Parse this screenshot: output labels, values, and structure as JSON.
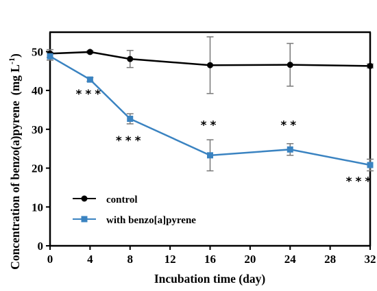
{
  "chart_data": {
    "type": "line",
    "title": "",
    "xlabel": "Incubation time (day)",
    "ylabel": "Concentration of benzo(a)pyrene",
    "ylabel_unit": "(mg L",
    "ylabel_exp": "-1",
    "ylabel_close": ")",
    "xlim": [
      0,
      32
    ],
    "ylim": [
      0,
      55
    ],
    "xticks": [
      0,
      4,
      8,
      12,
      16,
      20,
      24,
      28,
      32
    ],
    "yticks": [
      0,
      10,
      20,
      30,
      40,
      50
    ],
    "grid": false,
    "legend_position": "bottom-left",
    "series": [
      {
        "name": "control",
        "color": "#000000",
        "marker": "circle",
        "x": [
          0,
          4,
          8,
          16,
          24,
          32
        ],
        "y": [
          49.5,
          49.9,
          48.1,
          46.5,
          46.6,
          46.3
        ],
        "err": [
          1.0,
          0.3,
          2.2,
          7.3,
          5.5,
          0.5
        ]
      },
      {
        "name": "with benzo[a]pyrene",
        "color": "#3a83c1",
        "marker": "square",
        "x": [
          0,
          4,
          8,
          16,
          24,
          32
        ],
        "y": [
          48.8,
          42.8,
          32.7,
          23.3,
          24.8,
          20.8
        ],
        "err": [
          1.0,
          0.5,
          1.3,
          4.0,
          1.5,
          1.5
        ]
      }
    ],
    "annotations": [
      {
        "x": 4,
        "y": 39.5,
        "text": "***"
      },
      {
        "x": 8,
        "y": 27.5,
        "text": "***"
      },
      {
        "x": 16,
        "y": 31.5,
        "text": "**"
      },
      {
        "x": 24,
        "y": 31.5,
        "text": "**"
      },
      {
        "x": 31,
        "y": 17.0,
        "text": "***"
      }
    ]
  }
}
